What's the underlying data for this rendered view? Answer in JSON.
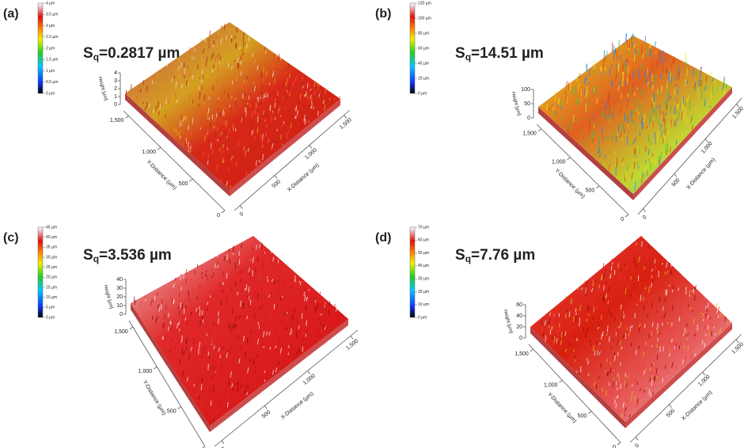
{
  "panels": [
    {
      "label": "(a)",
      "sq_symbol": "S",
      "sq_sub": "q",
      "sq_value": "=0.2817 µm",
      "colorbar_ticks": [
        "4 µm",
        "3.5 µm",
        "3 µm",
        "2.5 µm",
        "2 µm",
        "1.5 µm",
        "1 µm",
        "0.5 µm",
        "0 µm"
      ],
      "z_axis_label": "Height [µm]",
      "z_ticks": [
        "4",
        "3",
        "2",
        "1",
        "0"
      ],
      "y_axis_label": "Y-Distance (µm)",
      "y_ticks": [
        "1,500",
        "1,000",
        "500",
        "0"
      ],
      "x_axis_label": "X-Distance (µm)",
      "x_ticks": [
        "0",
        "500",
        "1,000",
        "1,500"
      ]
    },
    {
      "label": "(b)",
      "sq_symbol": "S",
      "sq_sub": "q",
      "sq_value": "=14.51 µm",
      "colorbar_ticks": [
        "120 µm",
        "100 µm",
        "80 µm",
        "60 µm",
        "40 µm",
        "20 µm",
        "0 µm"
      ],
      "z_axis_label": "Height [µm]",
      "z_ticks": [
        "100",
        "50",
        "0"
      ],
      "y_axis_label": "Y-Distance (µm)",
      "y_ticks": [
        "1,500",
        "1,000",
        "500",
        "0"
      ],
      "x_axis_label": "X-Distance (µm)",
      "x_ticks": [
        "0",
        "500",
        "1,000",
        "1,500"
      ]
    },
    {
      "label": "(c)",
      "sq_symbol": "S",
      "sq_sub": "q",
      "sq_value": "=3.536 µm",
      "colorbar_ticks": [
        "45 µm",
        "40 µm",
        "35 µm",
        "30 µm",
        "25 µm",
        "20 µm",
        "15 µm",
        "10 µm",
        "5 µm",
        "0 µm"
      ],
      "z_axis_label": "Height [µm]",
      "z_ticks": [
        "40",
        "30",
        "20",
        "10",
        "0"
      ],
      "y_axis_label": "Y-Distance (µm)",
      "y_ticks": [
        "1,500",
        "1,000",
        "500",
        "0"
      ],
      "x_axis_label": "X-Distance (µm)",
      "x_ticks": [
        "0",
        "500",
        "1,000",
        "1,500"
      ]
    },
    {
      "label": "(d)",
      "sq_symbol": "S",
      "sq_sub": "q",
      "sq_value": "=7.76 µm",
      "colorbar_ticks": [
        "70 µm",
        "60 µm",
        "50 µm",
        "40 µm",
        "30 µm",
        "20 µm",
        "10 µm",
        "0 µm"
      ],
      "z_axis_label": "Height [µm]",
      "z_ticks": [
        "60",
        "40",
        "20",
        "0"
      ],
      "y_axis_label": "Y-Distance (µm)",
      "y_ticks": [
        "1,500",
        "1,000",
        "500",
        "0"
      ],
      "x_axis_label": "X-Distance (µm)",
      "x_ticks": [
        "0",
        "500",
        "1,000",
        "1,500"
      ]
    }
  ]
}
